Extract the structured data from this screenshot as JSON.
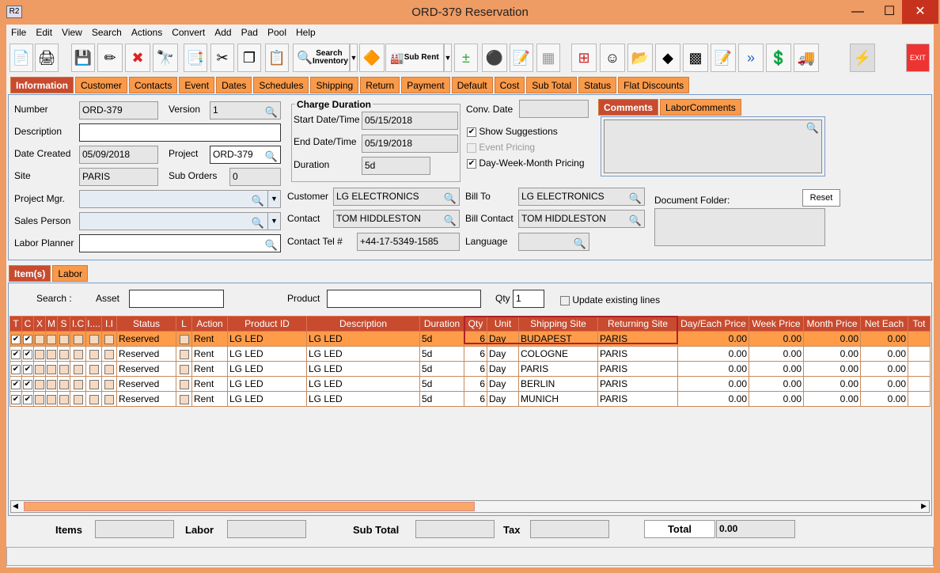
{
  "window": {
    "title": "ORD-379 Reservation",
    "logo": "R2",
    "minimize": "—",
    "maximize": "☐",
    "close": "✕"
  },
  "menu": [
    "File",
    "Edit",
    "View",
    "Search",
    "Actions",
    "Convert",
    "Add",
    "Pad",
    "Pool",
    "Help"
  ],
  "toolbar": {
    "search_inventory": "Search Inventory",
    "sub_rent": "Sub Rent",
    "exit": "EXIT"
  },
  "main_tabs": [
    "Information",
    "Customer",
    "Contacts",
    "Event",
    "Dates",
    "Schedules",
    "Shipping",
    "Return",
    "Payment",
    "Default",
    "Cost",
    "Sub Total",
    "Status",
    "Flat Discounts"
  ],
  "info": {
    "number_label": "Number",
    "number": "ORD-379",
    "version_label": "Version",
    "version": "1",
    "description_label": "Description",
    "description": "",
    "date_created_label": "Date Created",
    "date_created": "05/09/2018",
    "project_label": "Project",
    "project": "ORD-379",
    "site_label": "Site",
    "site": "PARIS",
    "sub_orders_label": "Sub Orders",
    "sub_orders": "0",
    "project_mgr_label": "Project Mgr.",
    "sales_person_label": "Sales Person",
    "labor_planner_label": "Labor Planner",
    "charge_duration_title": "Charge Duration",
    "start_label": "Start Date/Time",
    "start": "05/15/2018",
    "end_label": "End Date/Time",
    "end": "05/19/2018",
    "duration_label": "Duration",
    "duration": "5d",
    "conv_date_label": "Conv. Date",
    "show_suggestions": "Show Suggestions",
    "event_pricing": "Event Pricing",
    "dwm_pricing": "Day-Week-Month Pricing",
    "customer_label": "Customer",
    "customer": "LG ELECTRONICS",
    "contact_label": "Contact",
    "contact": "TOM HIDDLESTON",
    "contact_tel_label": "Contact Tel #",
    "contact_tel": "+44-17-5349-1585",
    "bill_to_label": "Bill To",
    "bill_to": "LG ELECTRONICS",
    "bill_contact_label": "Bill Contact",
    "bill_contact": "TOM HIDDLESTON",
    "language_label": "Language",
    "comment_tabs": [
      "Comments",
      "LaborComments"
    ],
    "document_folder_label": "Document Folder:",
    "reset": "Reset"
  },
  "sub_tabs": [
    "Item(s)",
    "Labor"
  ],
  "items": {
    "search_label": "Search :",
    "asset_label": "Asset",
    "product_label": "Product",
    "qty_label": "Qty",
    "qty": "1",
    "update_existing": "Update existing lines",
    "columns": [
      "T",
      "C",
      "X",
      "M",
      "S",
      "I.C",
      "I....",
      "I.I",
      "Status",
      "L",
      "Action",
      "Product ID",
      "Description",
      "Duration",
      "Qty",
      "Unit",
      "Shipping Site",
      "Returning Site",
      "Day/Each Price",
      "Week Price",
      "Month Price",
      "Net Each",
      "Tot"
    ],
    "rows": [
      {
        "status": "Reserved",
        "action": "Rent",
        "product_id": "LG LED",
        "description": "LG LED",
        "duration": "5d",
        "qty": "6",
        "unit": "Day",
        "shipping": "BUDAPEST",
        "returning": "PARIS",
        "day": "0.00",
        "week": "0.00",
        "month": "0.00",
        "net": "0.00"
      },
      {
        "status": "Reserved",
        "action": "Rent",
        "product_id": "LG LED",
        "description": "LG LED",
        "duration": "5d",
        "qty": "6",
        "unit": "Day",
        "shipping": "COLOGNE",
        "returning": "PARIS",
        "day": "0.00",
        "week": "0.00",
        "month": "0.00",
        "net": "0.00"
      },
      {
        "status": "Reserved",
        "action": "Rent",
        "product_id": "LG LED",
        "description": "LG LED",
        "duration": "5d",
        "qty": "6",
        "unit": "Day",
        "shipping": "PARIS",
        "returning": "PARIS",
        "day": "0.00",
        "week": "0.00",
        "month": "0.00",
        "net": "0.00"
      },
      {
        "status": "Reserved",
        "action": "Rent",
        "product_id": "LG LED",
        "description": "LG LED",
        "duration": "5d",
        "qty": "6",
        "unit": "Day",
        "shipping": "BERLIN",
        "returning": "PARIS",
        "day": "0.00",
        "week": "0.00",
        "month": "0.00",
        "net": "0.00"
      },
      {
        "status": "Reserved",
        "action": "Rent",
        "product_id": "LG LED",
        "description": "LG LED",
        "duration": "5d",
        "qty": "6",
        "unit": "Day",
        "shipping": "MUNICH",
        "returning": "PARIS",
        "day": "0.00",
        "week": "0.00",
        "month": "0.00",
        "net": "0.00"
      }
    ]
  },
  "footer": {
    "items_label": "Items",
    "labor_label": "Labor",
    "subtotal_label": "Sub Total",
    "tax_label": "Tax",
    "total_label": "Total",
    "total": "0.00"
  },
  "colors": {
    "accent": "#C84B2F",
    "tab": "#F99A4A",
    "selected_row": "#FF9C4A",
    "frame": "#EE9B64"
  }
}
